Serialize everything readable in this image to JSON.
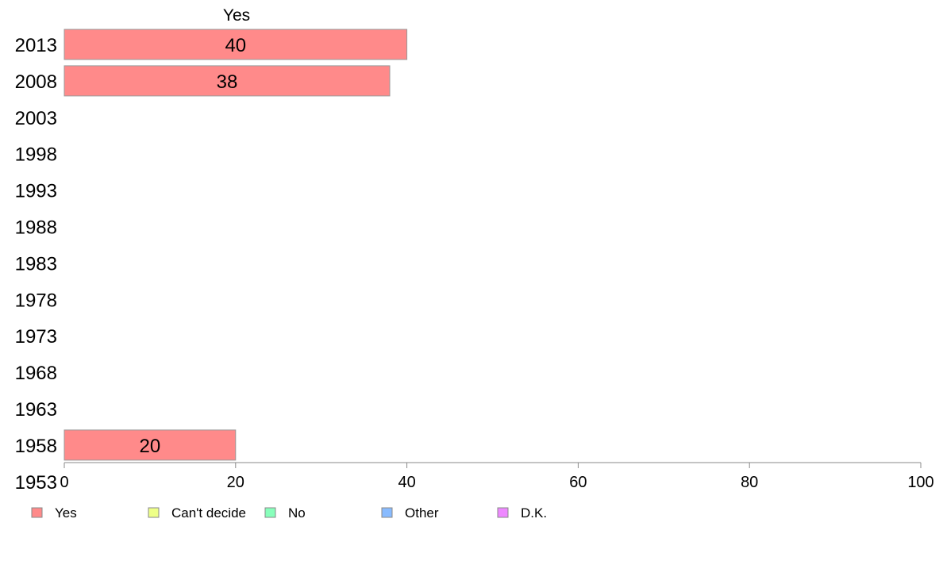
{
  "chart_data": {
    "type": "bar",
    "orientation": "horizontal",
    "series_title": "Yes",
    "categories": [
      "2013",
      "2008",
      "2003",
      "1998",
      "1993",
      "1988",
      "1983",
      "1978",
      "1973",
      "1968",
      "1963",
      "1958",
      "1953"
    ],
    "series": [
      {
        "name": "Yes",
        "color": "#ff8a8a",
        "values": [
          40,
          38,
          null,
          null,
          null,
          null,
          null,
          null,
          null,
          null,
          null,
          20,
          null
        ]
      }
    ],
    "data_labels": [
      "40",
      "38",
      "",
      "",
      "",
      "",
      "",
      "",
      "",
      "",
      "",
      "20",
      ""
    ],
    "xlim": [
      0,
      100
    ],
    "xticks": [
      "0",
      "20",
      "40",
      "60",
      "80",
      "100"
    ],
    "grid": false,
    "legend": {
      "position": "bottom-left",
      "items": [
        {
          "label": "Yes",
          "color": "#ff8a8a"
        },
        {
          "label": "Can't decide",
          "color": "#eeff88"
        },
        {
          "label": "No",
          "color": "#88ffbb"
        },
        {
          "label": "Other",
          "color": "#88bbff"
        },
        {
          "label": "D.K.",
          "color": "#ee88ff"
        }
      ]
    }
  }
}
